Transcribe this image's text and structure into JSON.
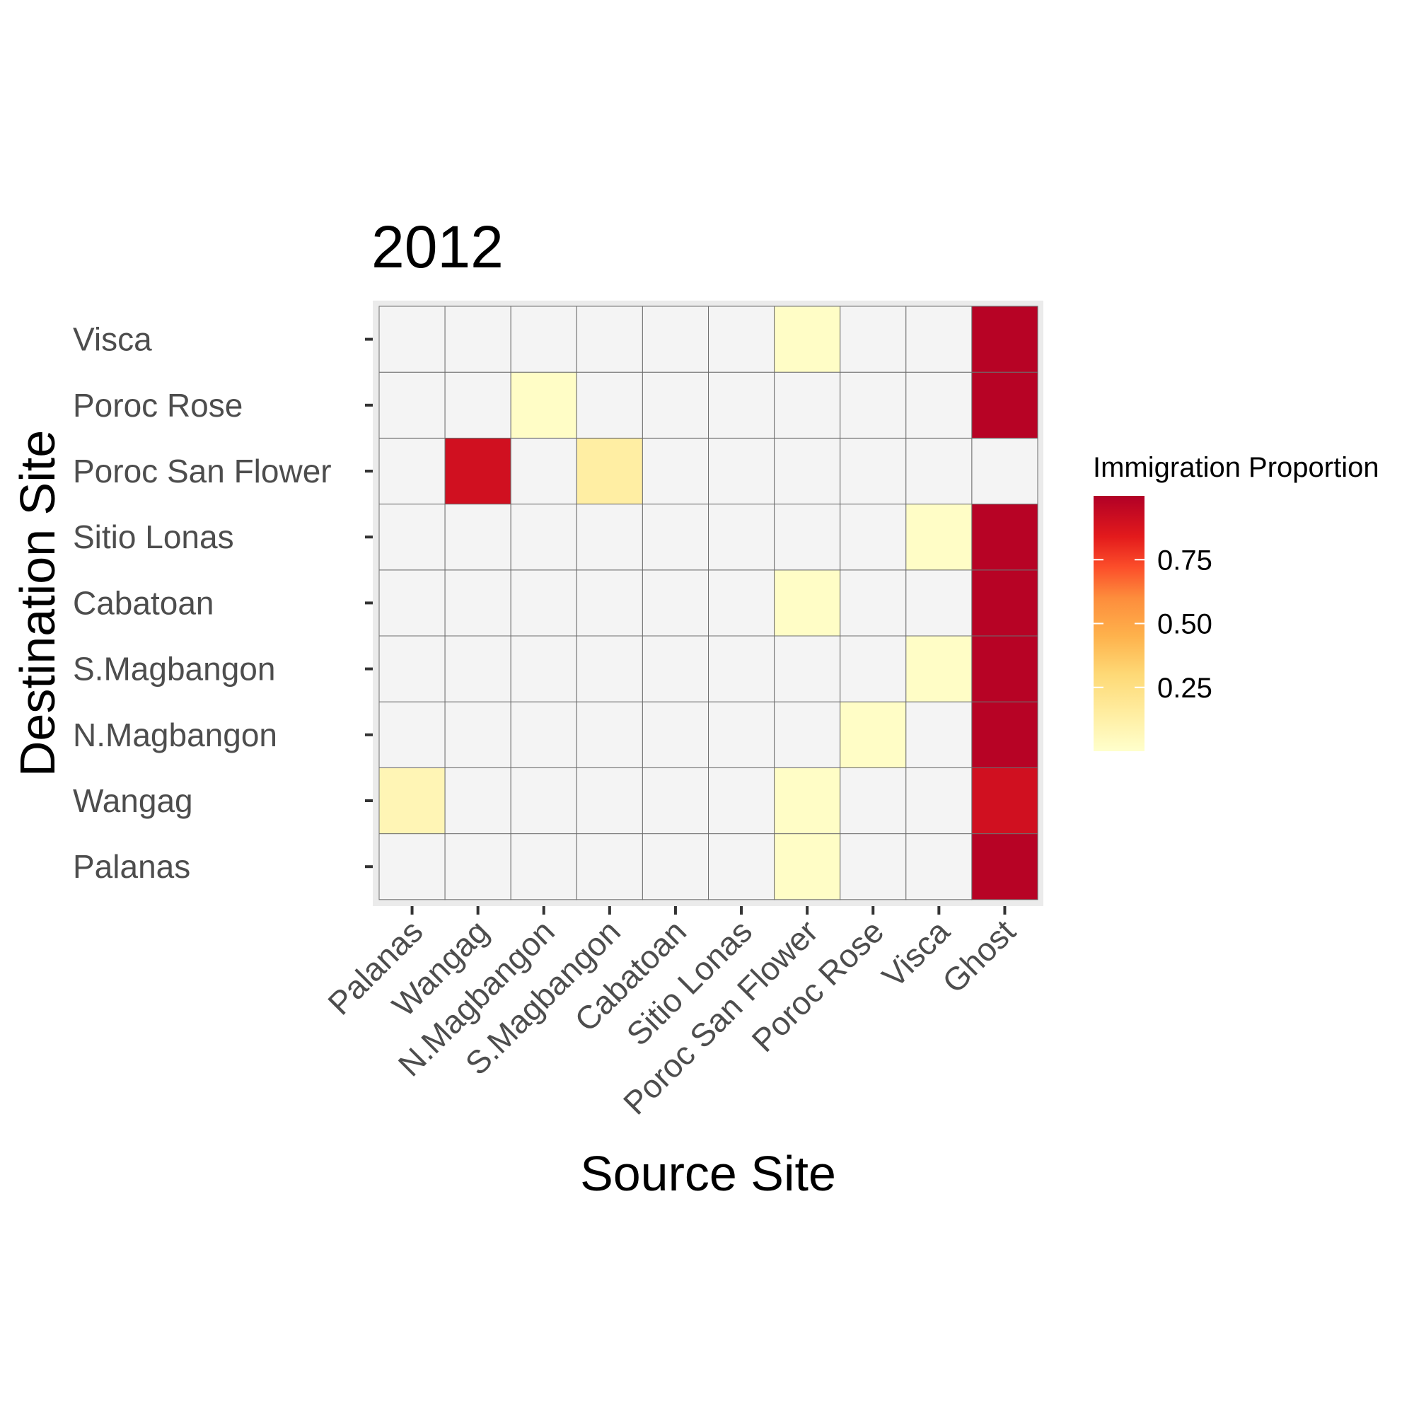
{
  "chart_data": {
    "type": "heatmap",
    "title": "2012",
    "xlabel": "Source Site",
    "ylabel": "Destination Site",
    "x_categories": [
      "Palanas",
      "Wangag",
      "N.Magbangon",
      "S.Magbangon",
      "Cabatoan",
      "Sitio Lonas",
      "Poroc San Flower",
      "Poroc Rose",
      "Visca",
      "Ghost"
    ],
    "y_categories": [
      "Palanas",
      "Wangag",
      "N.Magbangon",
      "S.Magbangon",
      "Cabatoan",
      "Sitio Lonas",
      "Poroc San Flower",
      "Poroc Rose",
      "Visca"
    ],
    "values": [
      [
        0,
        0,
        0,
        0,
        0,
        0,
        0.02,
        0,
        0,
        0.98
      ],
      [
        0.08,
        0,
        0,
        0,
        0,
        0,
        0.02,
        0,
        0,
        0.9
      ],
      [
        0,
        0,
        0,
        0,
        0,
        0,
        0,
        0.02,
        0,
        0.98
      ],
      [
        0,
        0,
        0,
        0,
        0,
        0,
        0,
        0,
        0.02,
        0.98
      ],
      [
        0,
        0,
        0,
        0,
        0,
        0,
        0.02,
        0,
        0,
        0.98
      ],
      [
        0,
        0,
        0,
        0,
        0,
        0,
        0,
        0,
        0.02,
        0.98
      ],
      [
        0,
        0.9,
        0,
        0.14,
        0,
        0,
        0,
        0,
        0,
        0
      ],
      [
        0,
        0,
        0.02,
        0,
        0,
        0,
        0,
        0,
        0,
        0.98
      ],
      [
        0,
        0,
        0,
        0,
        0,
        0,
        0.02,
        0,
        0,
        0.98
      ]
    ],
    "zero_color": "#f4f4f4",
    "legend": {
      "title": "Immigration Proportion",
      "ticks": [
        0.25,
        0.5,
        0.75
      ],
      "tick_labels": [
        "0.25",
        "0.50",
        "0.75"
      ],
      "range": [
        0,
        1
      ],
      "placement": "right"
    },
    "color_scale": [
      [
        0,
        "#ffffcc"
      ],
      [
        0.15,
        "#ffeda0"
      ],
      [
        0.3,
        "#fed976"
      ],
      [
        0.45,
        "#feb24c"
      ],
      [
        0.6,
        "#fd8d3c"
      ],
      [
        0.72,
        "#fc4e2a"
      ],
      [
        0.84,
        "#e31a1c"
      ],
      [
        1,
        "#b10026"
      ]
    ]
  }
}
